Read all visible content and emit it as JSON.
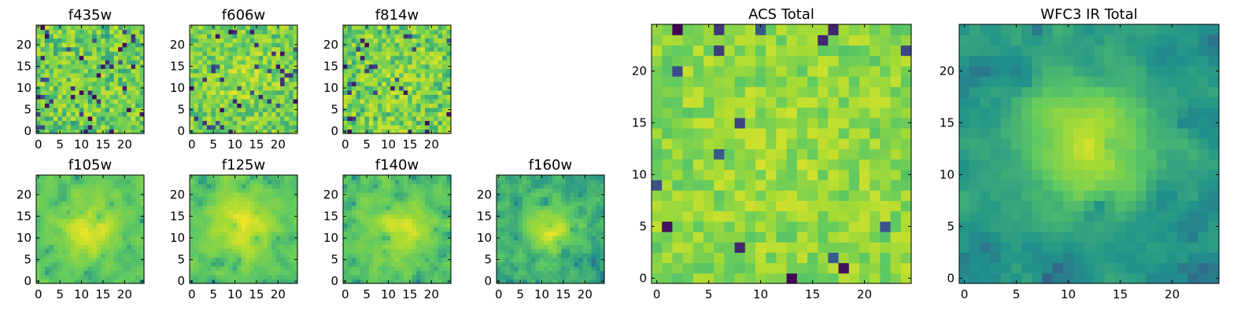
{
  "colormap": [
    "#440154",
    "#3b528b",
    "#21918c",
    "#5ec962",
    "#a8db34",
    "#fde725"
  ],
  "chart_data": [
    {
      "type": "heatmap",
      "title": "f435w",
      "size": 25,
      "xticks": [
        0,
        5,
        10,
        15,
        20
      ],
      "yticks": [
        0,
        5,
        10,
        15,
        20
      ],
      "xlim": [
        0,
        24
      ],
      "ylim": [
        0,
        24
      ],
      "pattern": "noise",
      "seed": 11,
      "center": [
        12,
        12
      ],
      "peak": 0.0,
      "sigma": 4,
      "base": 0.66,
      "noise": 0.22,
      "dark_fraction": 0.06
    },
    {
      "type": "heatmap",
      "title": "f606w",
      "size": 25,
      "xticks": [
        0,
        5,
        10,
        15,
        20
      ],
      "yticks": [
        0,
        5,
        10,
        15,
        20
      ],
      "xlim": [
        0,
        24
      ],
      "ylim": [
        0,
        24
      ],
      "pattern": "noise",
      "seed": 23,
      "center": [
        11,
        12
      ],
      "peak": 0.12,
      "sigma": 4,
      "base": 0.68,
      "noise": 0.2,
      "dark_fraction": 0.05
    },
    {
      "type": "heatmap",
      "title": "f814w",
      "size": 25,
      "xticks": [
        0,
        5,
        10,
        15,
        20
      ],
      "yticks": [
        0,
        5,
        10,
        15,
        20
      ],
      "xlim": [
        0,
        24
      ],
      "ylim": [
        0,
        24
      ],
      "pattern": "noise",
      "seed": 37,
      "center": [
        12,
        12
      ],
      "peak": 0.05,
      "sigma": 4,
      "base": 0.68,
      "noise": 0.22,
      "dark_fraction": 0.05
    },
    {
      "type": "heatmap",
      "title": "f105w",
      "size": 25,
      "xticks": [
        0,
        5,
        10,
        15,
        20
      ],
      "yticks": [
        0,
        5,
        10,
        15,
        20
      ],
      "xlim": [
        0,
        24
      ],
      "ylim": [
        0,
        24
      ],
      "pattern": "source",
      "seed": 41,
      "center": [
        12,
        12
      ],
      "peak": 0.35,
      "sigma": 4.5,
      "base": 0.6,
      "noise": 0.16,
      "dark_fraction": 0.04
    },
    {
      "type": "heatmap",
      "title": "f125w",
      "size": 25,
      "xticks": [
        0,
        5,
        10,
        15,
        20
      ],
      "yticks": [
        0,
        5,
        10,
        15,
        20
      ],
      "xlim": [
        0,
        24
      ],
      "ylim": [
        0,
        24
      ],
      "pattern": "source",
      "seed": 53,
      "center": [
        12,
        13
      ],
      "peak": 0.35,
      "sigma": 5,
      "base": 0.6,
      "noise": 0.16,
      "dark_fraction": 0.04
    },
    {
      "type": "heatmap",
      "title": "f140w",
      "size": 25,
      "xticks": [
        0,
        5,
        10,
        15,
        20
      ],
      "yticks": [
        0,
        5,
        10,
        15,
        20
      ],
      "xlim": [
        0,
        24
      ],
      "ylim": [
        0,
        24
      ],
      "pattern": "source",
      "seed": 67,
      "center": [
        13,
        12
      ],
      "peak": 0.3,
      "sigma": 4.5,
      "base": 0.6,
      "noise": 0.17,
      "dark_fraction": 0.04
    },
    {
      "type": "heatmap",
      "title": "f160w",
      "size": 25,
      "xticks": [
        0,
        5,
        10,
        15,
        20
      ],
      "yticks": [
        0,
        5,
        10,
        15,
        20
      ],
      "xlim": [
        0,
        24
      ],
      "ylim": [
        0,
        24
      ],
      "pattern": "source",
      "seed": 79,
      "center": [
        12,
        12
      ],
      "peak": 0.38,
      "sigma": 3.5,
      "base": 0.52,
      "noise": 0.18,
      "dark_fraction": 0.05
    },
    {
      "type": "heatmap",
      "title": "ACS Total",
      "size": 25,
      "xticks": [
        0,
        5,
        10,
        15,
        20
      ],
      "yticks": [
        0,
        5,
        10,
        15,
        20
      ],
      "xlim": [
        0,
        24
      ],
      "ylim": [
        0,
        24
      ],
      "pattern": "noise",
      "seed": 97,
      "center": [
        12,
        12
      ],
      "peak": 0.05,
      "sigma": 5,
      "base": 0.72,
      "noise": 0.15,
      "dark_fraction": 0.035
    },
    {
      "type": "heatmap",
      "title": "WFC3 IR Total",
      "size": 25,
      "xticks": [
        0,
        5,
        10,
        15,
        20
      ],
      "yticks": [
        0,
        5,
        10,
        15,
        20
      ],
      "xlim": [
        0,
        24
      ],
      "ylim": [
        0,
        24
      ],
      "pattern": "source",
      "seed": 113,
      "center": [
        12,
        13
      ],
      "peak": 0.45,
      "sigma": 4,
      "base": 0.42,
      "noise": 0.12,
      "dark_fraction": 0.03
    }
  ]
}
